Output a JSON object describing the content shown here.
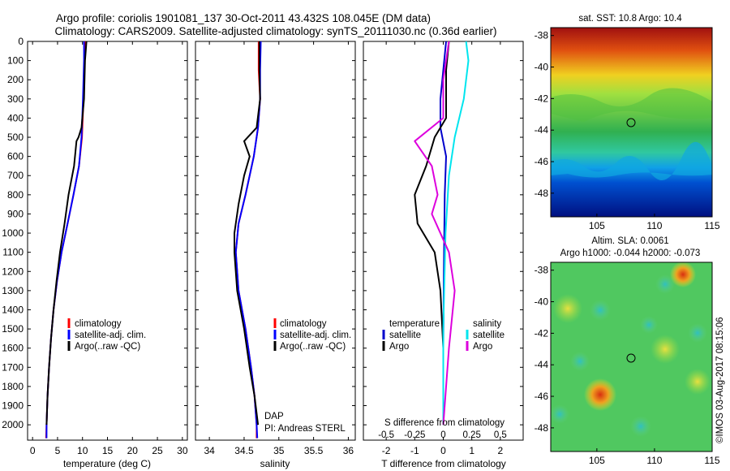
{
  "titles": {
    "line1": "Argo profile: coriolis 1901081_137 30-Oct-2011 43.432S 108.045E (DM data)",
    "line2": "Climatology: CARS2009. Satellite-adjusted climatology: synTS_20111030.nc (0.36d earlier)"
  },
  "depth_ticks": [
    "0",
    "100",
    "200",
    "300",
    "400",
    "500",
    "600",
    "700",
    "800",
    "900",
    "1000",
    "1100",
    "1200",
    "1300",
    "1400",
    "1500",
    "1600",
    "1700",
    "1800",
    "1900",
    "2000"
  ],
  "annotations": {
    "dap": "DAP",
    "pi": "PI: Andreas STERL",
    "sdiff_label": "S difference from climatology",
    "watermark": "©IMOS 03-Aug-2017 08:15:06"
  },
  "legends": {
    "temp": [
      {
        "label": "climatology",
        "color": "#ff0000"
      },
      {
        "label": "satellite-adj. clim.",
        "color": "#0000ff"
      },
      {
        "label": "Argo(..raw -QC)",
        "color": "#000000"
      }
    ],
    "sal": [
      {
        "label": "climatology",
        "color": "#ff0000"
      },
      {
        "label": "satellite-adj. clim.",
        "color": "#0000ff"
      },
      {
        "label": "Argo(..raw -QC)",
        "color": "#000000"
      }
    ],
    "diff_headers": {
      "temp": "temperature",
      "sal": "salinity"
    },
    "diff": [
      {
        "label": "satellite",
        "color": "#0000cc"
      },
      {
        "label": "Argo",
        "color": "#000000"
      },
      {
        "label": "satellite",
        "color": "#00e5ee"
      },
      {
        "label": "Argo",
        "color": "#dd00dd"
      }
    ]
  },
  "maps": {
    "sst_title": "sat. SST: 10.8  Argo: 10.4",
    "sla_title1": "Altim. SLA: 0.0061",
    "sla_title2": "Argo h1000: -0.044 h2000: -0.073",
    "lat_ticks": [
      "-38",
      "-40",
      "-42",
      "-44",
      "-46",
      "-48"
    ],
    "lon_ticks": [
      "105",
      "110",
      "115"
    ],
    "lon_range": [
      101,
      115
    ],
    "lat_range": [
      -49.5,
      -37.5
    ],
    "profile_location": {
      "lon": 108.045,
      "lat": -43.432
    }
  },
  "chart_data": [
    {
      "type": "line",
      "xlabel": "temperature (deg C)",
      "ylabel": "",
      "xlim": [
        -1,
        31
      ],
      "ylim": [
        2080,
        0
      ],
      "x_ticks": [
        "0",
        "5",
        "10",
        "15",
        "20",
        "25",
        "30"
      ],
      "series": [
        {
          "name": "climatology",
          "color": "#ff0000",
          "points": [
            [
              10.6,
              0
            ],
            [
              10.4,
              100
            ],
            [
              10.2,
              300
            ],
            [
              9.9,
              500
            ],
            [
              9.3,
              650
            ],
            [
              8.2,
              800
            ],
            [
              7.0,
              950
            ],
            [
              5.8,
              1100
            ],
            [
              4.9,
              1250
            ],
            [
              4.2,
              1400
            ],
            [
              3.7,
              1550
            ],
            [
              3.3,
              1700
            ],
            [
              3.0,
              1850
            ],
            [
              2.8,
              2000
            ],
            [
              2.7,
              2070
            ]
          ]
        },
        {
          "name": "satellite-adj. clim.",
          "color": "#0000ff",
          "points": [
            [
              10.3,
              0
            ],
            [
              10.3,
              100
            ],
            [
              10.1,
              300
            ],
            [
              9.8,
              500
            ],
            [
              9.3,
              650
            ],
            [
              8.2,
              800
            ],
            [
              7.0,
              950
            ],
            [
              5.8,
              1100
            ],
            [
              4.9,
              1250
            ],
            [
              4.2,
              1400
            ],
            [
              3.7,
              1550
            ],
            [
              3.3,
              1700
            ],
            [
              3.0,
              1850
            ],
            [
              2.8,
              2000
            ],
            [
              2.8,
              2070
            ]
          ]
        },
        {
          "name": "Argo(..raw -QC)",
          "color": "#000000",
          "points": [
            [
              10.8,
              0
            ],
            [
              10.5,
              100
            ],
            [
              10.3,
              300
            ],
            [
              9.8,
              450
            ],
            [
              9.2,
              500
            ],
            [
              8.8,
              520
            ],
            [
              8.3,
              650
            ],
            [
              7.2,
              800
            ],
            [
              6.4,
              950
            ],
            [
              5.5,
              1100
            ],
            [
              4.8,
              1250
            ],
            [
              4.2,
              1400
            ],
            [
              3.7,
              1550
            ],
            [
              3.3,
              1700
            ],
            [
              3.0,
              1850
            ],
            [
              2.8,
              2000
            ]
          ]
        }
      ]
    },
    {
      "type": "line",
      "xlabel": "salinity",
      "ylabel": "",
      "xlim": [
        33.8,
        36.1
      ],
      "ylim": [
        2080,
        0
      ],
      "x_ticks": [
        "34",
        "34.5",
        "35",
        "35.5",
        "36"
      ],
      "series": [
        {
          "name": "climatology",
          "color": "#ff0000",
          "points": [
            [
              34.71,
              0
            ],
            [
              34.71,
              150
            ],
            [
              34.73,
              300
            ],
            [
              34.7,
              450
            ],
            [
              34.64,
              600
            ],
            [
              34.52,
              800
            ],
            [
              34.42,
              950
            ],
            [
              34.38,
              1100
            ],
            [
              34.42,
              1300
            ],
            [
              34.52,
              1500
            ],
            [
              34.6,
              1700
            ],
            [
              34.65,
              1850
            ],
            [
              34.68,
              2000
            ],
            [
              34.68,
              2070
            ]
          ]
        },
        {
          "name": "satellite-adj. clim.",
          "color": "#0000ff",
          "points": [
            [
              34.74,
              0
            ],
            [
              34.73,
              150
            ],
            [
              34.73,
              300
            ],
            [
              34.7,
              450
            ],
            [
              34.64,
              600
            ],
            [
              34.52,
              800
            ],
            [
              34.42,
              950
            ],
            [
              34.38,
              1100
            ],
            [
              34.42,
              1300
            ],
            [
              34.52,
              1500
            ],
            [
              34.6,
              1700
            ],
            [
              34.65,
              1850
            ],
            [
              34.68,
              2000
            ],
            [
              34.69,
              2070
            ]
          ]
        },
        {
          "name": "Argo(..raw -QC)",
          "color": "#000000",
          "points": [
            [
              34.72,
              0
            ],
            [
              34.72,
              150
            ],
            [
              34.73,
              300
            ],
            [
              34.68,
              450
            ],
            [
              34.5,
              520
            ],
            [
              34.58,
              600
            ],
            [
              34.5,
              700
            ],
            [
              34.42,
              850
            ],
            [
              34.36,
              1000
            ],
            [
              34.36,
              1100
            ],
            [
              34.4,
              1300
            ],
            [
              34.5,
              1500
            ],
            [
              34.58,
              1700
            ],
            [
              34.65,
              1850
            ],
            [
              34.7,
              2000
            ]
          ]
        }
      ]
    },
    {
      "type": "line",
      "xlabel": "T difference from climatology",
      "ylabel": "",
      "xlim": [
        -2.8,
        2.8
      ],
      "ylim": [
        2080,
        0
      ],
      "x_ticks": [
        "-2",
        "-1",
        "0",
        "1",
        "2"
      ],
      "top_axis": {
        "label": "S difference from climatology",
        "ticks": [
          "-0.5",
          "-0.25",
          "0",
          "0.25",
          "0.5"
        ],
        "xlim": [
          -0.7,
          0.7
        ]
      },
      "series": [
        {
          "name": "temperature satellite",
          "color": "#0000cc",
          "points": [
            [
              0.1,
              0
            ],
            [
              0.0,
              150
            ],
            [
              -0.1,
              300
            ],
            [
              -0.1,
              450
            ],
            [
              0.1,
              600
            ],
            [
              0.05,
              800
            ],
            [
              0.02,
              1200
            ],
            [
              0.0,
              1600
            ],
            [
              0.0,
              2000
            ]
          ]
        },
        {
          "name": "temperature Argo",
          "color": "#000000",
          "points": [
            [
              0.2,
              0
            ],
            [
              0.1,
              150
            ],
            [
              0.1,
              400
            ],
            [
              -0.3,
              500
            ],
            [
              -0.6,
              650
            ],
            [
              -1.0,
              800
            ],
            [
              -0.9,
              950
            ],
            [
              -0.3,
              1100
            ],
            [
              -0.1,
              1300
            ],
            [
              0.0,
              1600
            ],
            [
              0.0,
              2000
            ]
          ]
        },
        {
          "name": "salinity satellite",
          "color": "#00e5ee",
          "points": [
            [
              0.2,
              0
            ],
            [
              0.22,
              100
            ],
            [
              0.18,
              300
            ],
            [
              0.1,
              500
            ],
            [
              0.05,
              700
            ],
            [
              0.02,
              1000
            ],
            [
              0.0,
              1500
            ],
            [
              0.0,
              2000
            ]
          ]
        },
        {
          "name": "salinity Argo",
          "color": "#dd00dd",
          "points": [
            [
              0.05,
              0
            ],
            [
              0.0,
              200
            ],
            [
              0.0,
              400
            ],
            [
              -0.25,
              520
            ],
            [
              -0.1,
              650
            ],
            [
              -0.05,
              800
            ],
            [
              -0.1,
              900
            ],
            [
              0.05,
              1100
            ],
            [
              0.1,
              1300
            ],
            [
              0.05,
              1600
            ],
            [
              0.0,
              2000
            ]
          ]
        }
      ]
    }
  ]
}
